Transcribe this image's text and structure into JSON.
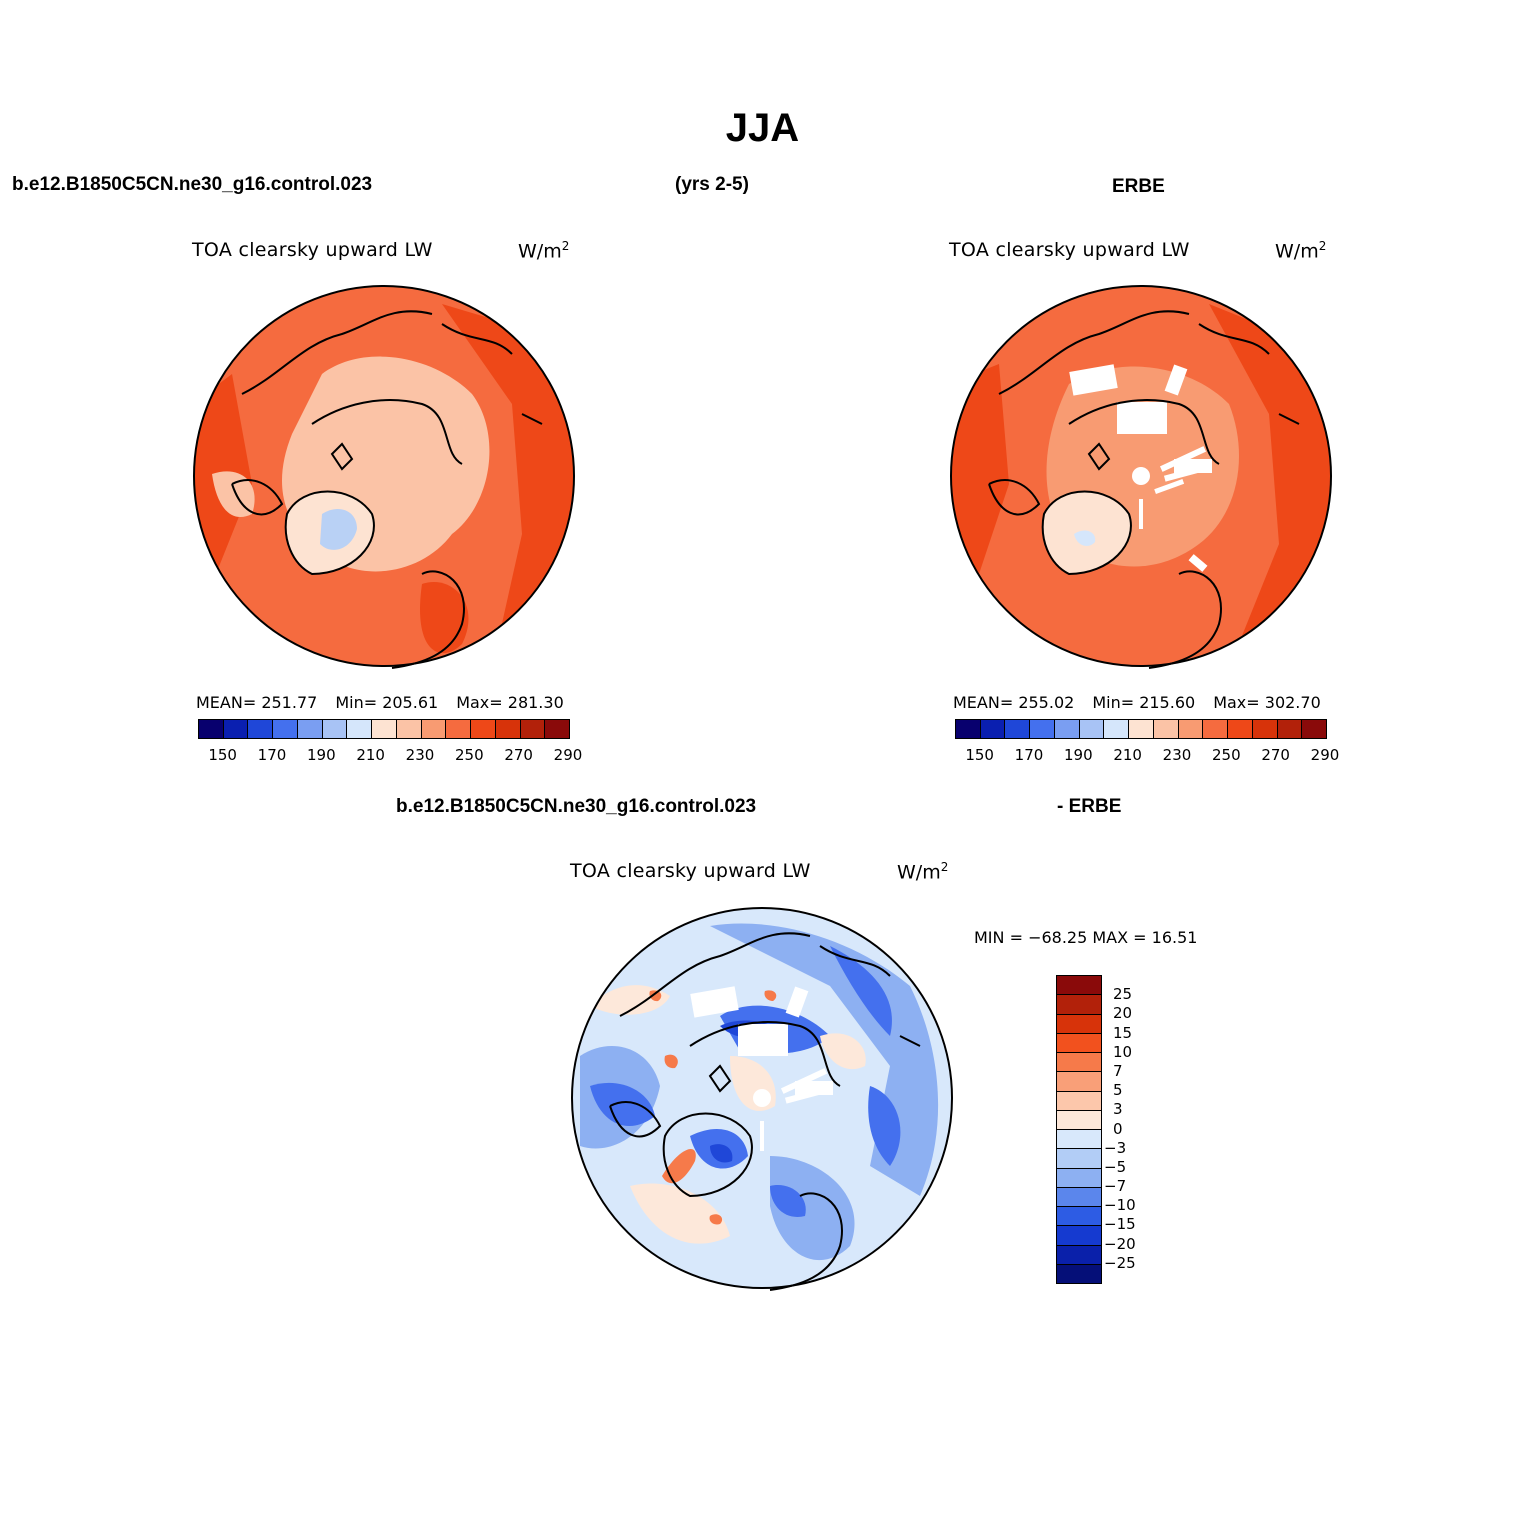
{
  "title": "JJA",
  "header": {
    "case_name": "b.e12.B1850C5CN.ne30_g16.control.023",
    "years": "(yrs 2-5)",
    "obs_name": "ERBE"
  },
  "diff_header": {
    "left": "b.e12.B1850C5CN.ne30_g16.control.023",
    "right": "- ERBE"
  },
  "panels": {
    "model": {
      "title": "TOA clearsky upward LW",
      "unit": "W/m",
      "unit_sup": "2",
      "stats": {
        "mean": "MEAN= 251.77",
        "min": "Min= 205.61",
        "max": "Max= 281.30"
      }
    },
    "obs": {
      "title": "TOA clearsky upward LW",
      "unit": "W/m",
      "unit_sup": "2",
      "stats": {
        "mean": "MEAN= 255.02",
        "min": "Min= 215.60",
        "max": "Max= 302.70"
      }
    },
    "diff": {
      "title": "TOA clearsky upward LW",
      "unit": "W/m",
      "unit_sup": "2",
      "minmax": "MIN = −68.25 MAX =   16.51"
    }
  },
  "colorbar_abs": {
    "colors": [
      "#08006e",
      "#0a1fb0",
      "#1f47d8",
      "#4470ee",
      "#7a9ef2",
      "#a8c3f5",
      "#d5e6fb",
      "#fde3d2",
      "#fbc3a6",
      "#f89b72",
      "#f56b3f",
      "#ee4818",
      "#d7330a",
      "#b2210a",
      "#8a0a0a"
    ],
    "labels": [
      "150",
      "170",
      "190",
      "210",
      "230",
      "250",
      "270",
      "290"
    ]
  },
  "colorbar_diff": {
    "colors": [
      "#8a0a0a",
      "#b2210a",
      "#d7330a",
      "#f2511e",
      "#f67a4a",
      "#f99f78",
      "#fcc7ab",
      "#fde8da",
      "#d8e8fb",
      "#b2cdf6",
      "#8db0f2",
      "#5b86ec",
      "#2d5ce4",
      "#153ad0",
      "#0a20aa",
      "#050f78"
    ],
    "labels": [
      "25",
      "20",
      "15",
      "10",
      "7",
      "5",
      "3",
      "0",
      "−3",
      "−5",
      "−7",
      "−10",
      "−15",
      "−20",
      "−25"
    ]
  },
  "map_colors": {
    "ocean_model": "#f56b3f",
    "ocean_model_dark": "#ee4818",
    "arctic_model": "#fbc3a6",
    "greenland_low": "#d5e6fb",
    "diff_base": "#d8e8fb",
    "diff_blue": "#4470ee",
    "diff_red": "#f67a4a"
  }
}
